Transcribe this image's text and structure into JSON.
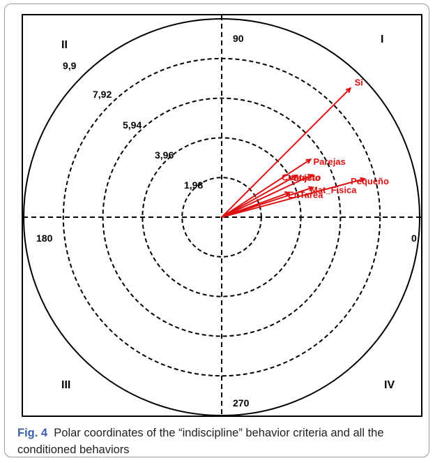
{
  "figure": {
    "label": "Fig. 4",
    "caption": "Polar coordinates of the “indiscipline” behavior criteria and all the conditioned behaviors"
  },
  "colors": {
    "vector": "#dd1111",
    "axes": "#000000",
    "circles": "#000000"
  },
  "chart_data": {
    "type": "polar",
    "radial_ticks": [
      "1,98",
      "3,96",
      "5,94",
      "7,92",
      "9,9"
    ],
    "radial_max": 9.9,
    "angle_labels": [
      "0",
      "90",
      "180",
      "270"
    ],
    "quadrant_labels": [
      "I",
      "II",
      "III",
      "IV"
    ],
    "vectors": [
      {
        "label": "Si",
        "radius": 9.1,
        "angle": 45
      },
      {
        "label": "Parejas",
        "radius": 5.3,
        "angle": 33
      },
      {
        "label": "Sujeto",
        "radius": 4.3,
        "angle": 29
      },
      {
        "label": "Contacto",
        "radius": 5.0,
        "angle": 25
      },
      {
        "label": "EnTarea",
        "radius": 3.6,
        "angle": 20
      },
      {
        "label": "Mat_Fisica",
        "radius": 4.8,
        "angle": 18
      },
      {
        "label": "Pequeño",
        "radius": 7.4,
        "angle": 15
      }
    ]
  }
}
